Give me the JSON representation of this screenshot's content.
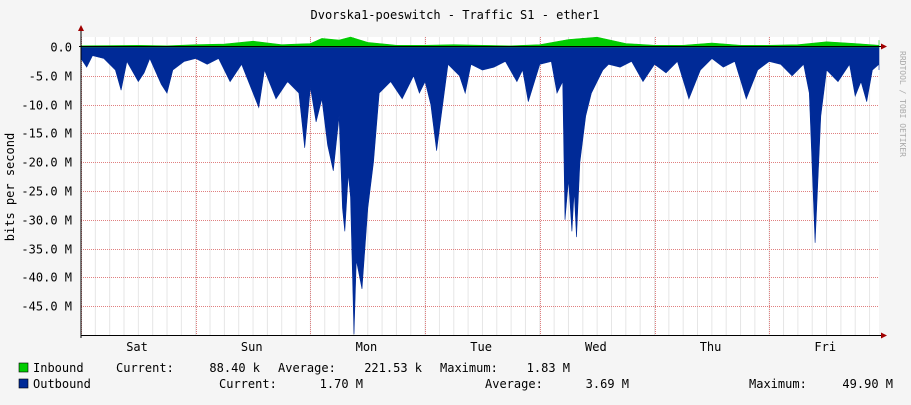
{
  "chart_data": {
    "type": "area",
    "title": "Dvorska1-poeswitch - Traffic S1 - ether1",
    "ylabel": "bits per second",
    "watermark": "RRDTOOL / TOBI OETIKER",
    "y_ticks": [
      {
        "value": 0,
        "label": "0.0"
      },
      {
        "value": -5000000,
        "label": "-5.0 M"
      },
      {
        "value": -10000000,
        "label": "-10.0 M"
      },
      {
        "value": -15000000,
        "label": "-15.0 M"
      },
      {
        "value": -20000000,
        "label": "-20.0 M"
      },
      {
        "value": -25000000,
        "label": "-25.0 M"
      },
      {
        "value": -30000000,
        "label": "-30.0 M"
      },
      {
        "value": -35000000,
        "label": "-35.0 M"
      },
      {
        "value": -40000000,
        "label": "-40.0 M"
      },
      {
        "value": -45000000,
        "label": "-45.0 M"
      }
    ],
    "ylim": [
      -50000000,
      2000000
    ],
    "x_ticks": [
      {
        "day_index": 1,
        "label": "Sat"
      },
      {
        "day_index": 2,
        "label": "Sun"
      },
      {
        "day_index": 3,
        "label": "Mon"
      },
      {
        "day_index": 4,
        "label": "Tue"
      },
      {
        "day_index": 5,
        "label": "Wed"
      },
      {
        "day_index": 6,
        "label": "Thu"
      },
      {
        "day_index": 7,
        "label": "Fri"
      }
    ],
    "colors": {
      "inbound": "#00cc00",
      "outbound": "#002a97",
      "grid": "#e08080",
      "canvas": "#ffffff",
      "background": "#f5f5f5"
    },
    "series": [
      {
        "name": "Inbound",
        "stats": {
          "current_label": "Current:",
          "current": "88.40 k",
          "average_label": "Average:",
          "average": "221.53 k",
          "maximum_label": "Maximum:",
          "maximum": "1.83 M"
        },
        "points_day": [
          0.0,
          0.25,
          0.5,
          0.75,
          1.0,
          1.25,
          1.5,
          1.75,
          2.0,
          2.1,
          2.25,
          2.35,
          2.5,
          2.75,
          3.0,
          3.25,
          3.5,
          3.75,
          4.0,
          4.25,
          4.5,
          4.75,
          5.0,
          5.25,
          5.5,
          5.75,
          6.0,
          6.25,
          6.5,
          6.75,
          7.0,
          7.25,
          7.4,
          7.5
        ],
        "points_bps": [
          200000,
          250000,
          300000,
          200000,
          400000,
          500000,
          1000000,
          400000,
          600000,
          1500000,
          1200000,
          1800000,
          800000,
          300000,
          300000,
          400000,
          300000,
          200000,
          400000,
          1300000,
          1700000,
          600000,
          300000,
          300000,
          700000,
          300000,
          300000,
          400000,
          900000,
          600000,
          300000,
          800000,
          1200000,
          200000
        ]
      },
      {
        "name": "Outbound",
        "stats": {
          "current_label": "Current:",
          "current": "1.70 M",
          "average_label": "Average:",
          "average": "3.69 M",
          "maximum_label": "Maximum:",
          "maximum": "49.90 M"
        },
        "points_day": [
          0.0,
          0.05,
          0.1,
          0.2,
          0.3,
          0.35,
          0.4,
          0.5,
          0.55,
          0.6,
          0.7,
          0.75,
          0.8,
          0.9,
          1.0,
          1.1,
          1.2,
          1.3,
          1.4,
          1.5,
          1.55,
          1.6,
          1.7,
          1.8,
          1.9,
          1.95,
          2.0,
          2.05,
          2.1,
          2.15,
          2.2,
          2.25,
          2.28,
          2.3,
          2.33,
          2.35,
          2.38,
          2.4,
          2.45,
          2.5,
          2.55,
          2.6,
          2.7,
          2.8,
          2.9,
          2.95,
          3.0,
          3.05,
          3.1,
          3.2,
          3.3,
          3.35,
          3.4,
          3.5,
          3.6,
          3.7,
          3.8,
          3.85,
          3.9,
          4.0,
          4.1,
          4.15,
          4.2,
          4.22,
          4.25,
          4.28,
          4.3,
          4.32,
          4.35,
          4.4,
          4.45,
          4.5,
          4.55,
          4.6,
          4.7,
          4.8,
          4.9,
          5.0,
          5.1,
          5.2,
          5.3,
          5.4,
          5.5,
          5.6,
          5.7,
          5.8,
          5.9,
          6.0,
          6.1,
          6.2,
          6.3,
          6.35,
          6.4,
          6.45,
          6.5,
          6.6,
          6.7,
          6.75,
          6.8,
          6.85,
          6.9,
          7.0,
          7.1,
          7.2,
          7.3,
          7.4,
          7.5
        ],
        "points_bps": [
          -2000000,
          -3500000,
          -1500000,
          -2000000,
          -4000000,
          -7500000,
          -2500000,
          -6000000,
          -4500000,
          -2000000,
          -6500000,
          -8000000,
          -4000000,
          -2500000,
          -2000000,
          -3000000,
          -2000000,
          -6000000,
          -3000000,
          -8000000,
          -10500000,
          -4000000,
          -9000000,
          -6000000,
          -8000000,
          -17500000,
          -7000000,
          -13000000,
          -9000000,
          -17000000,
          -21500000,
          -12000000,
          -28000000,
          -32000000,
          -22000000,
          -26000000,
          -49900000,
          -37000000,
          -42000000,
          -28000000,
          -20000000,
          -8000000,
          -6000000,
          -9000000,
          -5000000,
          -8000000,
          -6000000,
          -10000000,
          -18000000,
          -3000000,
          -5000000,
          -8000000,
          -3000000,
          -4000000,
          -3500000,
          -2500000,
          -6000000,
          -4000000,
          -9500000,
          -3000000,
          -2500000,
          -8000000,
          -6000000,
          -30000000,
          -23000000,
          -32000000,
          -25000000,
          -33000000,
          -20000000,
          -12000000,
          -8000000,
          -6000000,
          -4000000,
          -3000000,
          -3500000,
          -2500000,
          -6000000,
          -3000000,
          -4500000,
          -2500000,
          -9000000,
          -4000000,
          -2000000,
          -3500000,
          -2500000,
          -9000000,
          -4000000,
          -2500000,
          -3000000,
          -5000000,
          -3000000,
          -8000000,
          -34000000,
          -12000000,
          -4000000,
          -6000000,
          -3000000,
          -8500000,
          -6000000,
          -9500000,
          -4000000,
          -3000000,
          -2500000,
          -4000000,
          -2500000,
          -3000000,
          -2000000
        ]
      }
    ]
  }
}
